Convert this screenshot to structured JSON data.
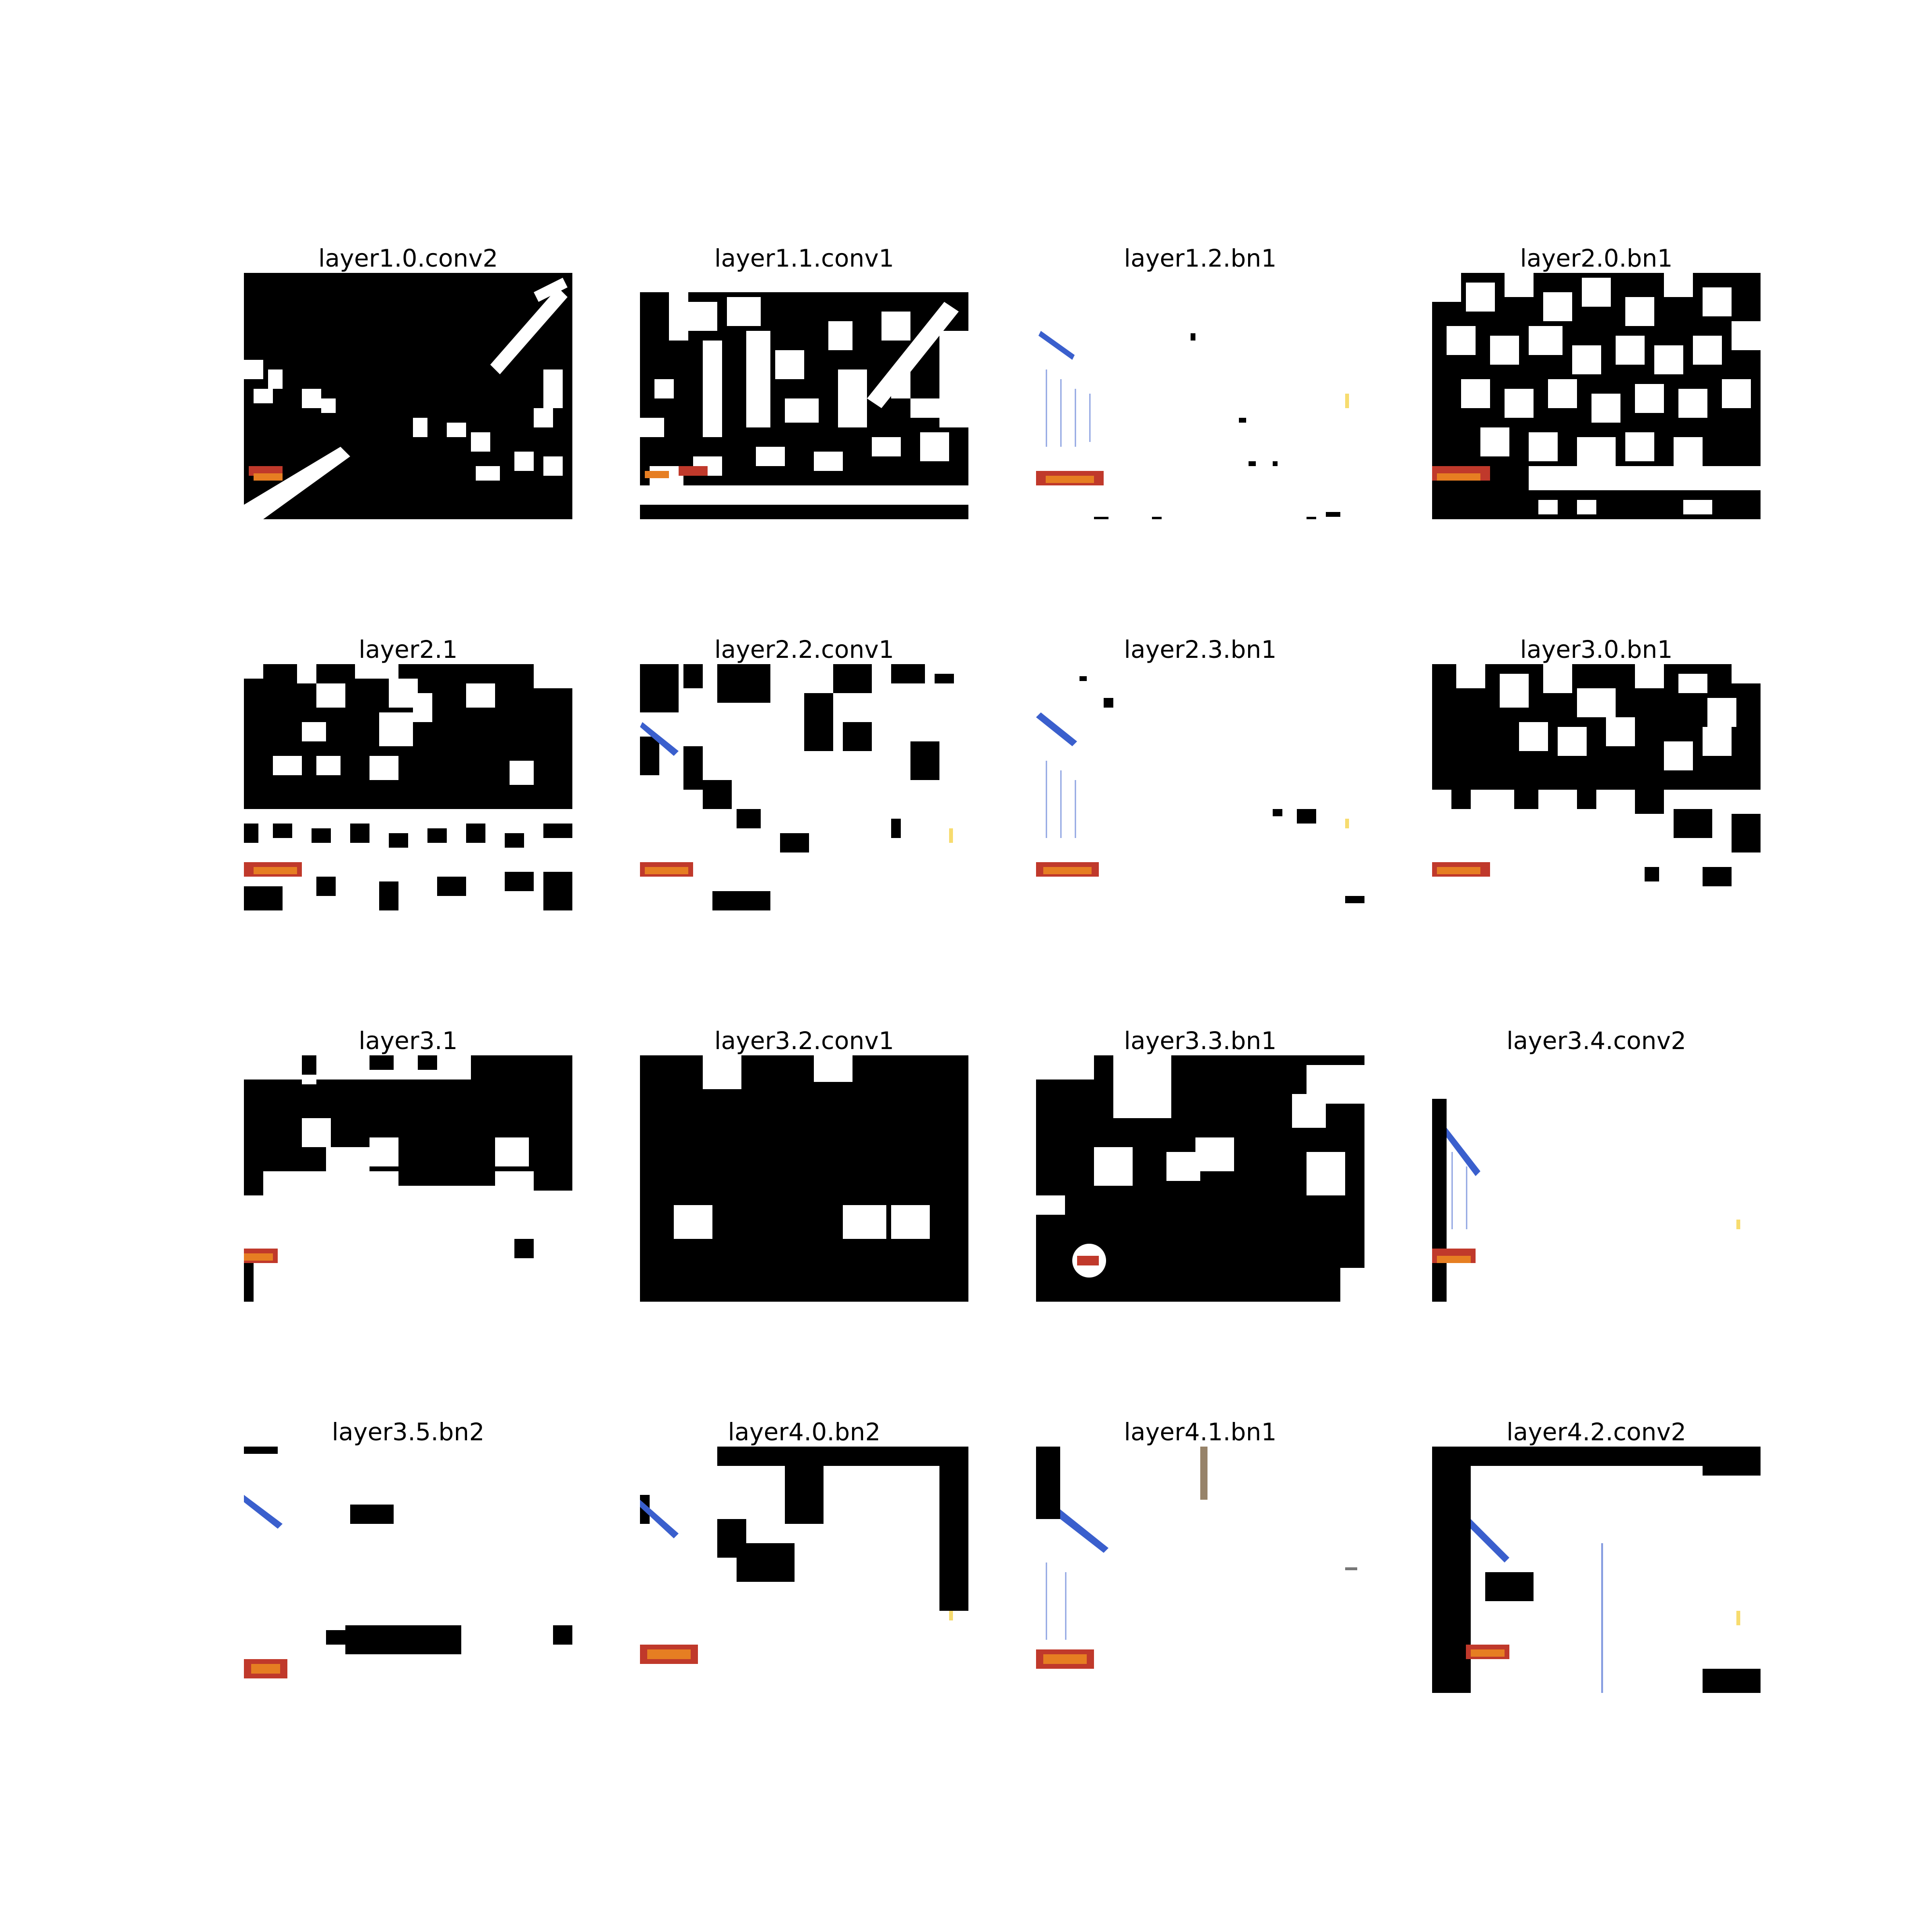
{
  "panels": [
    {
      "title": "layer1.0.conv2",
      "theme": "dark"
    },
    {
      "title": "layer1.1.conv1",
      "theme": "dark"
    },
    {
      "title": "layer1.2.bn1",
      "theme": "light"
    },
    {
      "title": "layer2.0.bn1",
      "theme": "dark"
    },
    {
      "title": "layer2.1",
      "theme": "dark"
    },
    {
      "title": "layer2.2.conv1",
      "theme": "mixed"
    },
    {
      "title": "layer2.3.bn1",
      "theme": "light"
    },
    {
      "title": "layer3.0.bn1",
      "theme": "dark"
    },
    {
      "title": "layer3.1",
      "theme": "mixed"
    },
    {
      "title": "layer3.2.conv1",
      "theme": "dark"
    },
    {
      "title": "layer3.3.bn1",
      "theme": "dark"
    },
    {
      "title": "layer3.4.conv2",
      "theme": "light"
    },
    {
      "title": "layer3.5.bn2",
      "theme": "light"
    },
    {
      "title": "layer4.0.bn2",
      "theme": "mixed"
    },
    {
      "title": "layer4.1.bn1",
      "theme": "light"
    },
    {
      "title": "layer4.2.conv2",
      "theme": "mixed"
    }
  ],
  "colors": {
    "background": "#ffffff",
    "activation_dark": "#000000",
    "activation_light": "#ffffff",
    "accent_red": "#c0392b",
    "accent_orange": "#e67e22",
    "accent_blue": "#3a5fcd",
    "accent_cyan": "#7fd3e6",
    "accent_yellow": "#f1c40f"
  }
}
